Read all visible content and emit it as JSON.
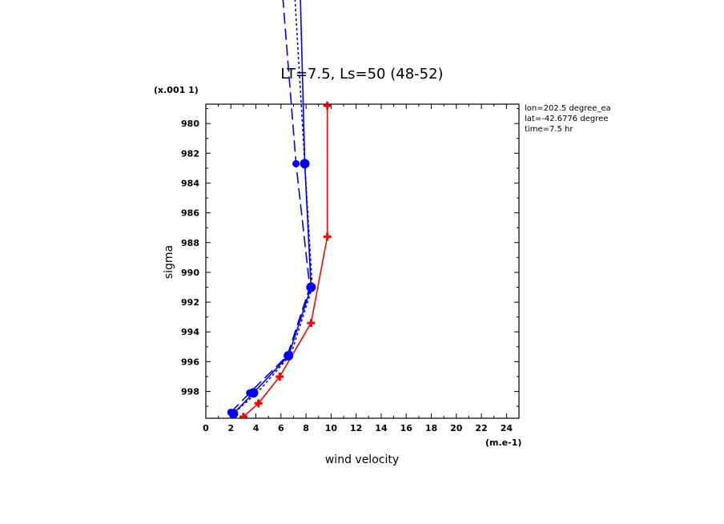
{
  "chart_data": {
    "type": "line",
    "title": "LT=7.5, Ls=50 (48-52)",
    "xlabel": "wind velocity",
    "ylabel": "sigma",
    "x_unit_label": "(m.e-1)",
    "y_scale_label": "(x.001 1)",
    "xlim": [
      0,
      25
    ],
    "ylim": [
      999.8,
      978.7
    ],
    "x_ticks": [
      0,
      2,
      4,
      6,
      8,
      10,
      12,
      14,
      16,
      18,
      20,
      22,
      24
    ],
    "y_ticks": [
      980,
      982,
      984,
      986,
      988,
      990,
      992,
      994,
      996,
      998
    ],
    "info_lines": [
      "lon=202.5 degree_ea",
      "lat=-42.6776 degree",
      "time=7.5 hr"
    ],
    "series": [
      {
        "color": "#ff0000",
        "style": "solid",
        "marker": "plus",
        "points": [
          [
            3.0,
            999.7
          ],
          [
            4.2,
            998.8
          ],
          [
            5.9,
            997.0
          ],
          [
            8.4,
            993.4
          ],
          [
            9.7,
            987.6
          ],
          [
            9.7,
            978.8
          ]
        ]
      },
      {
        "color": "#0000ff",
        "style": "solid",
        "marker": "circle",
        "points": [
          [
            2.2,
            999.5
          ],
          [
            3.8,
            998.1
          ],
          [
            6.6,
            995.6
          ],
          [
            8.4,
            991.0
          ],
          [
            7.9,
            982.7
          ],
          [
            7.5,
            970.0
          ]
        ]
      },
      {
        "color": "#0000ff",
        "style": "dotted",
        "marker": "none",
        "points": [
          [
            2.3,
            999.4
          ],
          [
            4.2,
            998.0
          ],
          [
            6.8,
            995.5
          ],
          [
            8.5,
            991.0
          ],
          [
            7.9,
            982.7
          ],
          [
            7.0,
            970.0
          ]
        ]
      },
      {
        "color": "#0000ff",
        "style": "dashed",
        "marker": "circle-small",
        "points": [
          [
            2.0,
            999.4
          ],
          [
            3.5,
            998.1
          ],
          [
            6.5,
            995.6
          ],
          [
            8.3,
            991.0
          ],
          [
            7.2,
            982.7
          ],
          [
            6.0,
            970.0
          ]
        ]
      }
    ]
  }
}
